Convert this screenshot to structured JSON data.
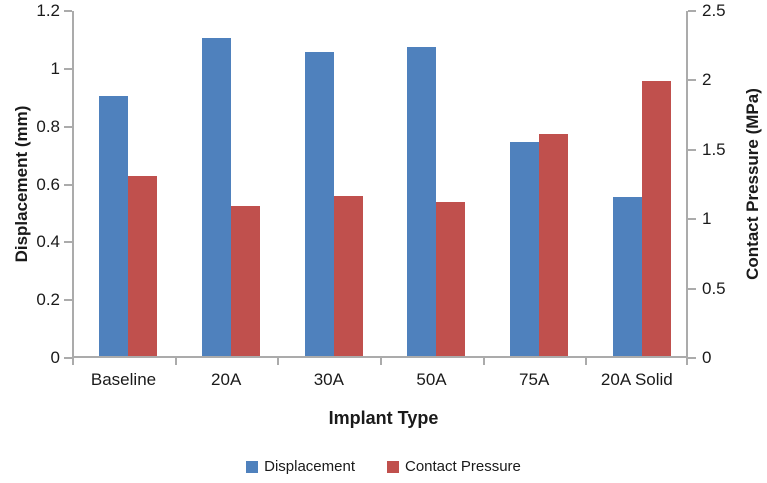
{
  "chart_data": {
    "type": "bar",
    "title": "",
    "categories": [
      "Baseline",
      "20A",
      "30A",
      "50A",
      "75A",
      "20A Solid"
    ],
    "series": [
      {
        "name": "Displacement",
        "axis": "left",
        "color": "#4F81BD",
        "values": [
          0.9,
          1.1,
          1.05,
          1.07,
          0.74,
          0.55
        ]
      },
      {
        "name": "Contact Pressure",
        "axis": "right",
        "color": "#C0504D",
        "values": [
          1.3,
          1.08,
          1.15,
          1.11,
          1.6,
          1.98
        ]
      }
    ],
    "xlabel": "Implant Type",
    "left_axis": {
      "label": "Displacement (mm)",
      "min": 0,
      "max": 1.2,
      "ticks": [
        "1.2",
        "1",
        "0.8",
        "0.6",
        "0.4",
        "0.2",
        "0"
      ]
    },
    "right_axis": {
      "label": "Contact Pressure (MPa)",
      "min": 0,
      "max": 2.5,
      "ticks": [
        "2.5",
        "2",
        "1.5",
        "1",
        "0.5",
        "0"
      ]
    },
    "legend": {
      "position": "bottom",
      "entries": [
        {
          "label": "Displacement",
          "color": "#4F81BD"
        },
        {
          "label": "Contact Pressure",
          "color": "#C0504D"
        }
      ]
    },
    "grid": false,
    "axis_line_color": "#ababab",
    "text_color": "#1a1a1a"
  }
}
